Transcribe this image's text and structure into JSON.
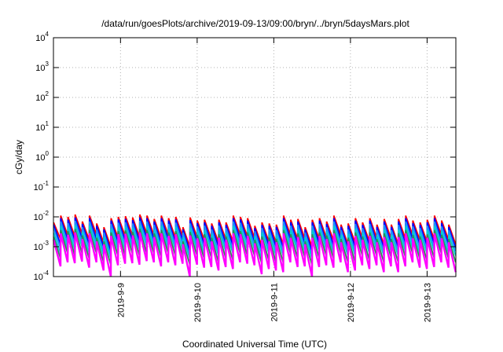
{
  "chart_data": {
    "type": "line",
    "title": "/data/run/goesPlots/archive/2019-09-13/09:00/bryn/../bryn/5daysMars.plot",
    "xlabel": "Coordinated Universal Time (UTC)",
    "ylabel": "cGy/day",
    "yscale": "log",
    "ylim": [
      0.0001,
      10000
    ],
    "y_ticks": [
      {
        "value": 0.0001,
        "base": "10",
        "exp": "-4"
      },
      {
        "value": 0.001,
        "base": "10",
        "exp": "-3"
      },
      {
        "value": 0.01,
        "base": "10",
        "exp": "-2"
      },
      {
        "value": 0.1,
        "base": "10",
        "exp": "-1"
      },
      {
        "value": 1,
        "base": "10",
        "exp": "0"
      },
      {
        "value": 10,
        "base": "10",
        "exp": "1"
      },
      {
        "value": 100,
        "base": "10",
        "exp": "2"
      },
      {
        "value": 1000,
        "base": "10",
        "exp": "3"
      },
      {
        "value": 10000,
        "base": "10",
        "exp": "4"
      }
    ],
    "xlim": [
      "2019-09-08T03:00",
      "2019-09-13T09:00"
    ],
    "x_ticks": [
      "2019-9-9",
      "2019-9-10",
      "2019-9-11",
      "2019-9-12",
      "2019-9-13"
    ],
    "grid": true,
    "series": [
      {
        "color": "#ff0000",
        "peaks": [
          0.0065,
          0.011,
          0.01,
          0.012,
          0.007,
          0.011,
          0.006,
          0.0045,
          0.009,
          0.01,
          0.0105,
          0.0095,
          0.012,
          0.011,
          0.0085,
          0.011,
          0.009,
          0.01,
          0.0045,
          0.0095,
          0.0075,
          0.008,
          0.006,
          0.008,
          0.0065,
          0.011,
          0.01,
          0.009,
          0.005,
          0.0065,
          0.006,
          0.0055,
          0.011,
          0.008,
          0.0085,
          0.0045,
          0.008,
          0.009,
          0.007,
          0.011,
          0.0055,
          0.006,
          0.009,
          0.0065,
          0.009,
          0.0055,
          0.0085,
          0.0055,
          0.0085,
          0.011,
          0.0075,
          0.0065,
          0.008,
          0.011,
          0.0075,
          0.0055
        ],
        "troughs": [
          0.0018,
          0.0024,
          0.0022,
          0.0027,
          0.0017,
          0.0026,
          0.0014,
          0.001,
          0.002,
          0.0023,
          0.0024,
          0.0021,
          0.0028,
          0.0025,
          0.0019,
          0.0025,
          0.002,
          0.0023,
          0.001,
          0.0021,
          0.0017,
          0.0018,
          0.0014,
          0.0018,
          0.0015,
          0.0025,
          0.0022,
          0.002,
          0.0011,
          0.0015,
          0.0014,
          0.0012,
          0.0025,
          0.0018,
          0.0019,
          0.001,
          0.0018,
          0.002,
          0.0016,
          0.0025,
          0.0012,
          0.0014,
          0.002,
          0.0015,
          0.002,
          0.0012,
          0.0019,
          0.0012,
          0.0019,
          0.0025,
          0.0017,
          0.0015,
          0.0018,
          0.0025,
          0.0017,
          0.0012
        ]
      },
      {
        "color": "#0000ff",
        "peaks": [
          0.0055,
          0.009,
          0.008,
          0.0095,
          0.0058,
          0.009,
          0.005,
          0.0038,
          0.0075,
          0.0082,
          0.0085,
          0.0078,
          0.0095,
          0.009,
          0.007,
          0.009,
          0.0075,
          0.0082,
          0.0038,
          0.0078,
          0.0062,
          0.0066,
          0.005,
          0.0066,
          0.0054,
          0.009,
          0.0082,
          0.0075,
          0.0042,
          0.0054,
          0.005,
          0.0046,
          0.009,
          0.0066,
          0.007,
          0.0038,
          0.0066,
          0.0075,
          0.0058,
          0.009,
          0.0046,
          0.005,
          0.0075,
          0.0054,
          0.0075,
          0.0046,
          0.007,
          0.0046,
          0.007,
          0.009,
          0.0062,
          0.0054,
          0.0066,
          0.009,
          0.0062,
          0.0046
        ],
        "troughs": [
          0.0012,
          0.0017,
          0.0016,
          0.0019,
          0.0012,
          0.0018,
          0.001,
          0.0007,
          0.0014,
          0.0016,
          0.0017,
          0.0015,
          0.002,
          0.0018,
          0.0013,
          0.0018,
          0.0014,
          0.0016,
          0.0007,
          0.0015,
          0.0012,
          0.0013,
          0.001,
          0.0013,
          0.0011,
          0.0018,
          0.0016,
          0.0014,
          0.0008,
          0.0011,
          0.001,
          0.0009,
          0.0018,
          0.0013,
          0.0013,
          0.0007,
          0.0013,
          0.0014,
          0.0011,
          0.0018,
          0.0009,
          0.001,
          0.0014,
          0.0011,
          0.0014,
          0.0009,
          0.0013,
          0.0009,
          0.0013,
          0.0018,
          0.0012,
          0.0011,
          0.0013,
          0.0018,
          0.0012,
          0.0009
        ]
      },
      {
        "color": "#1e90ff",
        "peaks": [
          0.0042,
          0.007,
          0.0062,
          0.0074,
          0.0045,
          0.007,
          0.0038,
          0.003,
          0.0058,
          0.0064,
          0.0066,
          0.006,
          0.0074,
          0.007,
          0.0054,
          0.007,
          0.0058,
          0.0064,
          0.003,
          0.006,
          0.0048,
          0.0051,
          0.0038,
          0.0051,
          0.0042,
          0.007,
          0.0064,
          0.0058,
          0.0033,
          0.0042,
          0.0038,
          0.0036,
          0.007,
          0.0051,
          0.0054,
          0.003,
          0.0051,
          0.0058,
          0.0045,
          0.007,
          0.0036,
          0.0038,
          0.0058,
          0.0042,
          0.0058,
          0.0036,
          0.0054,
          0.0036,
          0.0054,
          0.007,
          0.0048,
          0.0042,
          0.0051,
          0.007,
          0.0048,
          0.0036
        ],
        "troughs": [
          0.0009,
          0.0013,
          0.0012,
          0.0014,
          0.0009,
          0.0013,
          0.0007,
          0.0005,
          0.0011,
          0.0012,
          0.0012,
          0.0011,
          0.0014,
          0.0013,
          0.001,
          0.0013,
          0.0011,
          0.0012,
          0.0005,
          0.0011,
          0.0009,
          0.0009,
          0.0007,
          0.0009,
          0.0008,
          0.0013,
          0.0012,
          0.0011,
          0.0006,
          0.0008,
          0.0007,
          0.0007,
          0.0013,
          0.0009,
          0.001,
          0.0005,
          0.0009,
          0.0011,
          0.0008,
          0.0013,
          0.0007,
          0.0007,
          0.0011,
          0.0008,
          0.0011,
          0.0007,
          0.001,
          0.0007,
          0.001,
          0.0013,
          0.0009,
          0.0008,
          0.0009,
          0.0013,
          0.0009,
          0.0007
        ]
      },
      {
        "color": "#00ced1",
        "peaks": [
          0.003,
          0.005,
          0.0045,
          0.0053,
          0.0032,
          0.005,
          0.0027,
          0.0021,
          0.0041,
          0.0046,
          0.0047,
          0.0043,
          0.0053,
          0.005,
          0.0038,
          0.005,
          0.0041,
          0.0046,
          0.0021,
          0.0043,
          0.0034,
          0.0036,
          0.0027,
          0.0036,
          0.003,
          0.005,
          0.0046,
          0.0041,
          0.0023,
          0.003,
          0.0027,
          0.0025,
          0.005,
          0.0036,
          0.0038,
          0.0021,
          0.0036,
          0.0041,
          0.0032,
          0.005,
          0.0025,
          0.0027,
          0.0041,
          0.003,
          0.0041,
          0.0025,
          0.0038,
          0.0025,
          0.0038,
          0.005,
          0.0034,
          0.003,
          0.0036,
          0.005,
          0.0034,
          0.0025
        ],
        "troughs": [
          0.0006,
          0.0009,
          0.0008,
          0.001,
          0.0006,
          0.0009,
          0.0005,
          0.0004,
          0.0008,
          0.0008,
          0.0009,
          0.0008,
          0.001,
          0.0009,
          0.0007,
          0.0009,
          0.0008,
          0.0008,
          0.0004,
          0.0008,
          0.0006,
          0.0007,
          0.0005,
          0.0007,
          0.0006,
          0.0009,
          0.0008,
          0.0008,
          0.0004,
          0.0006,
          0.0005,
          0.0005,
          0.0009,
          0.0007,
          0.0007,
          0.0004,
          0.0007,
          0.0008,
          0.0006,
          0.0009,
          0.0005,
          0.0005,
          0.0008,
          0.0006,
          0.0008,
          0.0005,
          0.0007,
          0.0005,
          0.0007,
          0.0009,
          0.0006,
          0.0006,
          0.0007,
          0.0009,
          0.0006,
          0.0005
        ]
      },
      {
        "color": "#2e8b57",
        "peaks": [
          0.0022,
          0.0036,
          0.0033,
          0.0039,
          0.0024,
          0.0036,
          0.002,
          0.0015,
          0.003,
          0.0033,
          0.0035,
          0.0031,
          0.0039,
          0.0036,
          0.0028,
          0.0036,
          0.003,
          0.0033,
          0.0015,
          0.0031,
          0.0025,
          0.0026,
          0.002,
          0.0026,
          0.0022,
          0.0036,
          0.0033,
          0.003,
          0.0017,
          0.0022,
          0.002,
          0.0018,
          0.0036,
          0.0026,
          0.0028,
          0.0015,
          0.0026,
          0.003,
          0.0024,
          0.0036,
          0.0018,
          0.002,
          0.003,
          0.0022,
          0.003,
          0.0018,
          0.0028,
          0.0018,
          0.0028,
          0.0036,
          0.0025,
          0.0022,
          0.0026,
          0.0036,
          0.0025,
          0.0018
        ],
        "troughs": [
          0.0004,
          0.0006,
          0.0005,
          0.0006,
          0.0004,
          0.0006,
          0.0003,
          0.00025,
          0.0005,
          0.0005,
          0.0006,
          0.0005,
          0.0006,
          0.0006,
          0.00045,
          0.0006,
          0.0005,
          0.0005,
          0.00025,
          0.0005,
          0.0004,
          0.00042,
          0.0003,
          0.00042,
          0.00035,
          0.0006,
          0.0005,
          0.0005,
          0.00028,
          0.00035,
          0.0003,
          0.0003,
          0.0006,
          0.00042,
          0.00045,
          0.00025,
          0.00042,
          0.0005,
          0.0004,
          0.0006,
          0.0003,
          0.0003,
          0.0005,
          0.00035,
          0.0005,
          0.0003,
          0.00045,
          0.0003,
          0.00045,
          0.0006,
          0.0004,
          0.00035,
          0.00042,
          0.0006,
          0.0004,
          0.0003
        ]
      },
      {
        "color": "#ff00ff",
        "peaks": [
          0.0017,
          0.0028,
          0.0025,
          0.003,
          0.0018,
          0.0028,
          0.0015,
          0.0012,
          0.0023,
          0.0026,
          0.0027,
          0.0024,
          0.003,
          0.0028,
          0.0021,
          0.0028,
          0.0023,
          0.0026,
          0.0012,
          0.0024,
          0.0019,
          0.002,
          0.0015,
          0.002,
          0.0017,
          0.0028,
          0.0026,
          0.0023,
          0.0013,
          0.0017,
          0.0015,
          0.0014,
          0.0028,
          0.002,
          0.0021,
          0.0012,
          0.002,
          0.0023,
          0.0018,
          0.0028,
          0.0014,
          0.0015,
          0.0023,
          0.0017,
          0.0023,
          0.0014,
          0.0021,
          0.0014,
          0.0021,
          0.0028,
          0.0019,
          0.0017,
          0.002,
          0.0028,
          0.0019,
          0.0014
        ],
        "troughs": [
          0.00022,
          0.0003,
          0.00028,
          0.00032,
          0.0002,
          0.0003,
          0.00016,
          0.0001,
          0.00024,
          0.00027,
          0.00028,
          0.00025,
          0.00033,
          0.0003,
          0.00022,
          0.0003,
          0.00024,
          0.00027,
          0.0001,
          0.00025,
          0.0002,
          0.00021,
          0.00016,
          0.00021,
          0.00018,
          0.0003,
          0.00027,
          0.00024,
          0.00012,
          0.00018,
          0.00016,
          0.00014,
          0.0003,
          0.00021,
          0.00022,
          0.0001,
          0.00021,
          0.00024,
          0.0002,
          0.0003,
          0.00014,
          0.00016,
          0.00024,
          0.00018,
          0.00024,
          0.00014,
          0.00022,
          0.00014,
          0.00022,
          0.0003,
          0.0002,
          0.00018,
          0.00021,
          0.0003,
          0.0002,
          0.00014
        ]
      }
    ]
  }
}
